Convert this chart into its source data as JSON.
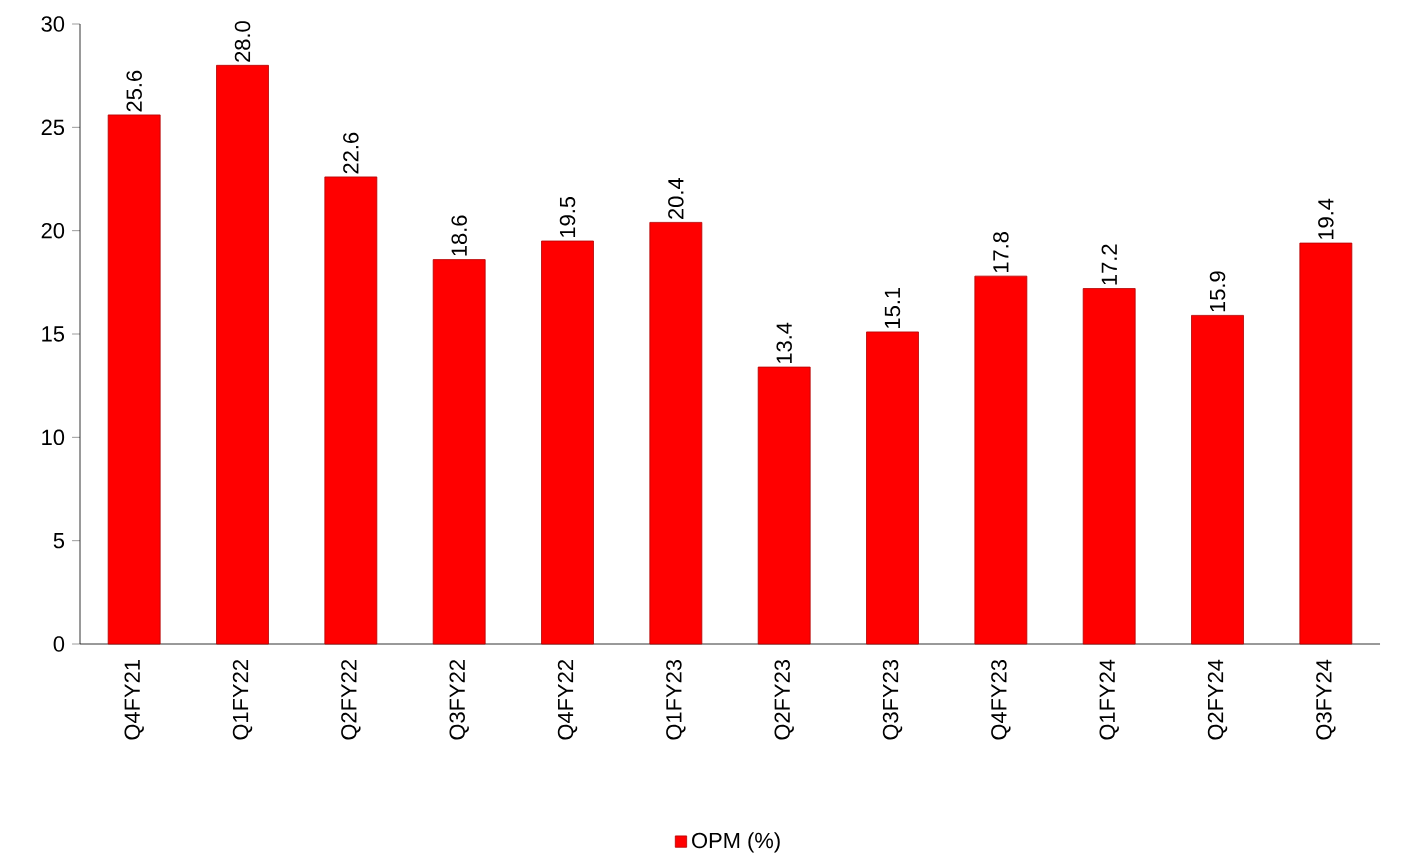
{
  "chart_data": {
    "type": "bar",
    "categories": [
      "Q4FY21",
      "Q1FY22",
      "Q2FY22",
      "Q3FY22",
      "Q4FY22",
      "Q1FY23",
      "Q2FY23",
      "Q3FY23",
      "Q4FY23",
      "Q1FY24",
      "Q2FY24",
      "Q3FY24"
    ],
    "series": [
      {
        "name": "OPM (%)",
        "color": "#ff0000",
        "values": [
          25.6,
          28.0,
          22.6,
          18.6,
          19.5,
          20.4,
          13.4,
          15.1,
          17.8,
          17.2,
          15.9,
          19.4
        ],
        "value_labels": [
          "25.6",
          "28.0",
          "22.6",
          "18.6",
          "19.5",
          "20.4",
          "13.4",
          "15.1",
          "17.8",
          "17.2",
          "15.9",
          "19.4"
        ]
      }
    ],
    "ylim": [
      0,
      30
    ],
    "yticks": [
      0,
      5,
      10,
      15,
      20,
      25,
      30
    ],
    "legend": "bottom",
    "grid": false
  }
}
